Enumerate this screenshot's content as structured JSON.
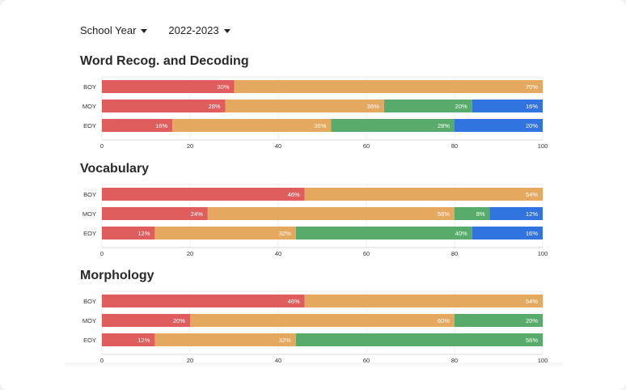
{
  "filters": {
    "school_year_label": "School Year",
    "year_value": "2022-2023"
  },
  "colors": {
    "red": "#df5d5d",
    "orange": "#e5a85f",
    "green": "#58ab6a",
    "blue": "#3174e0"
  },
  "chart_data": [
    {
      "type": "bar",
      "orientation": "horizontal",
      "stacked": true,
      "title": "Word Recog. and Decoding",
      "categories": [
        "BOY",
        "MOY",
        "EOY"
      ],
      "series": [
        {
          "color": "red",
          "values": [
            30,
            28,
            16
          ]
        },
        {
          "color": "orange",
          "values": [
            70,
            36,
            36
          ]
        },
        {
          "color": "green",
          "values": [
            0,
            20,
            28
          ]
        },
        {
          "color": "blue",
          "values": [
            0,
            16,
            20
          ]
        }
      ],
      "xlim": [
        0,
        100
      ],
      "xticks": [
        0,
        20,
        40,
        60,
        80,
        100
      ],
      "value_suffix": "%"
    },
    {
      "type": "bar",
      "orientation": "horizontal",
      "stacked": true,
      "title": "Vocabulary",
      "categories": [
        "BOY",
        "MOY",
        "EOY"
      ],
      "series": [
        {
          "color": "red",
          "values": [
            46,
            24,
            12
          ]
        },
        {
          "color": "orange",
          "values": [
            54,
            56,
            32
          ]
        },
        {
          "color": "green",
          "values": [
            0,
            8,
            40
          ]
        },
        {
          "color": "blue",
          "values": [
            0,
            12,
            16
          ]
        }
      ],
      "xlim": [
        0,
        100
      ],
      "xticks": [
        0,
        20,
        40,
        60,
        80,
        100
      ],
      "value_suffix": "%"
    },
    {
      "type": "bar",
      "orientation": "horizontal",
      "stacked": true,
      "title": "Morphology",
      "categories": [
        "BOY",
        "MOY",
        "EOY"
      ],
      "series": [
        {
          "color": "red",
          "values": [
            46,
            20,
            12
          ]
        },
        {
          "color": "orange",
          "values": [
            54,
            60,
            32
          ]
        },
        {
          "color": "green",
          "values": [
            0,
            20,
            56
          ]
        },
        {
          "color": "blue",
          "values": [
            0,
            0,
            0
          ]
        }
      ],
      "xlim": [
        0,
        100
      ],
      "xticks": [
        0,
        20,
        40,
        60,
        80,
        100
      ],
      "value_suffix": "%"
    }
  ]
}
